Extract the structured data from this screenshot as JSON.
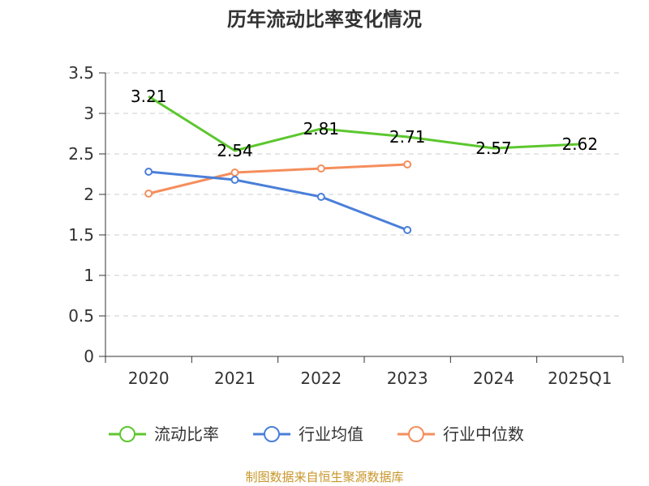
{
  "chart_data": {
    "type": "line",
    "title": "历年流动比率变化情况",
    "xlabel": "",
    "ylabel": "",
    "categories": [
      "2020",
      "2021",
      "2022",
      "2023",
      "2024",
      "2025Q1"
    ],
    "ylim": [
      0,
      3.5
    ],
    "yticks": [
      "0",
      "0.5",
      "1",
      "1.5",
      "2",
      "2.5",
      "3",
      "3.5"
    ],
    "grid": true,
    "legend_position": "bottom",
    "series": [
      {
        "name": "流动比率",
        "color": "#5cc72e",
        "values": [
          3.21,
          2.54,
          2.81,
          2.71,
          2.57,
          2.62
        ],
        "labels": [
          "3.21",
          "2.54",
          "2.81",
          "2.71",
          "2.57",
          "2.62"
        ],
        "show_labels": true
      },
      {
        "name": "行业均值",
        "color": "#4a7fd9",
        "values": [
          2.28,
          2.18,
          1.97,
          1.56,
          null,
          null
        ],
        "show_labels": false
      },
      {
        "name": "行业中位数",
        "color": "#f58e5c",
        "values": [
          2.01,
          2.27,
          2.32,
          2.37,
          null,
          null
        ],
        "show_labels": false
      }
    ]
  },
  "source_note": "制图数据来自恒生聚源数据库"
}
